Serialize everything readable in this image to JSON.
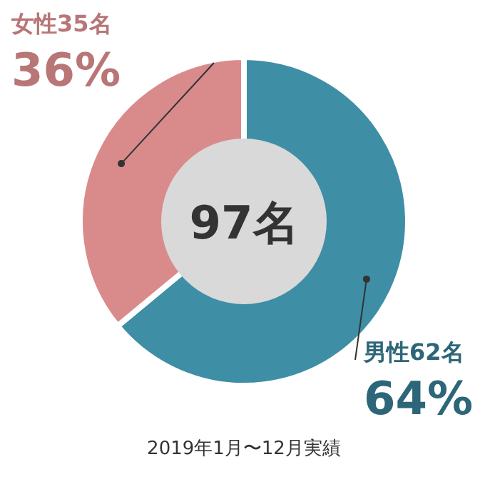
{
  "chart_data": {
    "type": "donut",
    "categories": [
      "男性62名",
      "女性35名"
    ],
    "values": [
      64,
      36
    ],
    "value_labels": [
      "64%",
      "36%"
    ],
    "colors": [
      "#3e8ea6",
      "#d98b8c"
    ],
    "annotations": [
      "97名",
      "2019年1月〜12月実績"
    ]
  }
}
